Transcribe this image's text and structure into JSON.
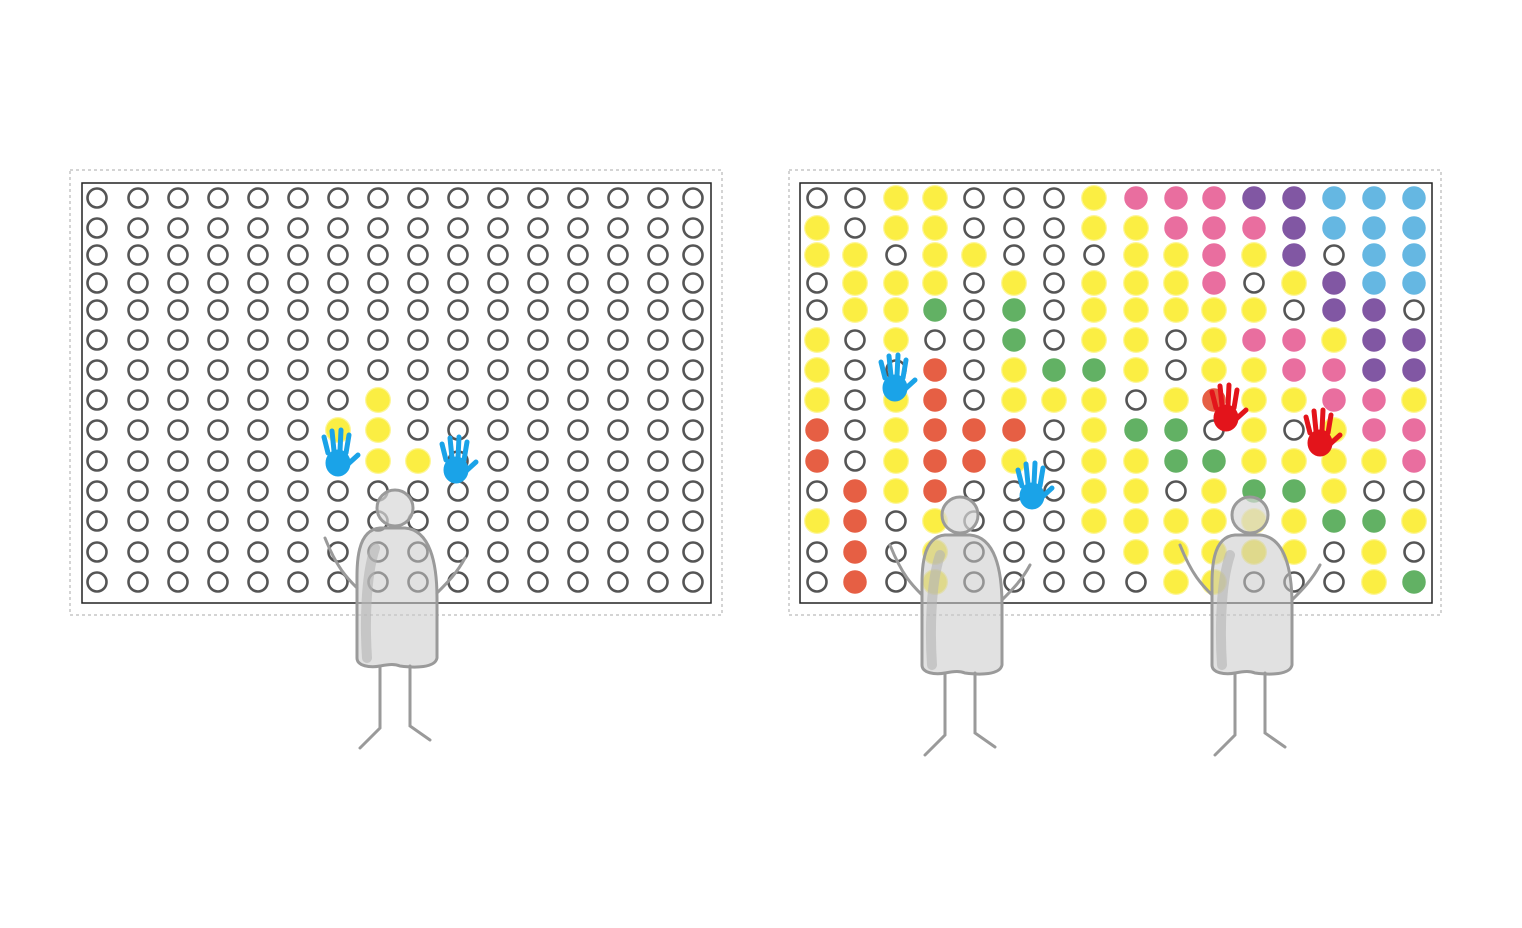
{
  "palette": {
    "o": "none",
    "y": "#fbee3f",
    "p": "#e8679a",
    "v": "#7b4f9f",
    "b": "#5db4e1",
    "g": "#5aad5c",
    "r": "#e5573a"
  },
  "panels": [
    {
      "rows": [
        "oooooooooooooooo",
        "oooooooooooooooo",
        "oooooooooooooooo",
        "oooooooooooooooo",
        "oooooooooooooooo",
        "oooooooooooooooo",
        "oooooooooooooooo",
        "oooooooyoooooooo",
        "ooooooyyoooooooo",
        "oooooooyyooooooo",
        "oooooooooooooooo",
        "oooooooooooooooo",
        "oooooooooooooooo",
        "oooooooooooooooo"
      ]
    },
    {
      "rows": [
        "ooyyoooypppvvbbb",
        "yoyyoooyypppvbbb",
        "yyoyyoooyypyvobb",
        "oyyyoyoyyypoyvbb",
        "oyygogoyyyyyovvo",
        "yoyoogoyyoyppyvv",
        "yooroyggyoyyppvv",
        "yoyroyyyoyryyppy",
        "royrrroyggoyoypp",
        "royrryoyyggyyyyp",
        "oryroooyyoyggyoo",
        "yroyoooyyyyyyggy",
        "oroyooooyyyyyoyo",
        "oroyoooooyyoooyg"
      ]
    }
  ]
}
